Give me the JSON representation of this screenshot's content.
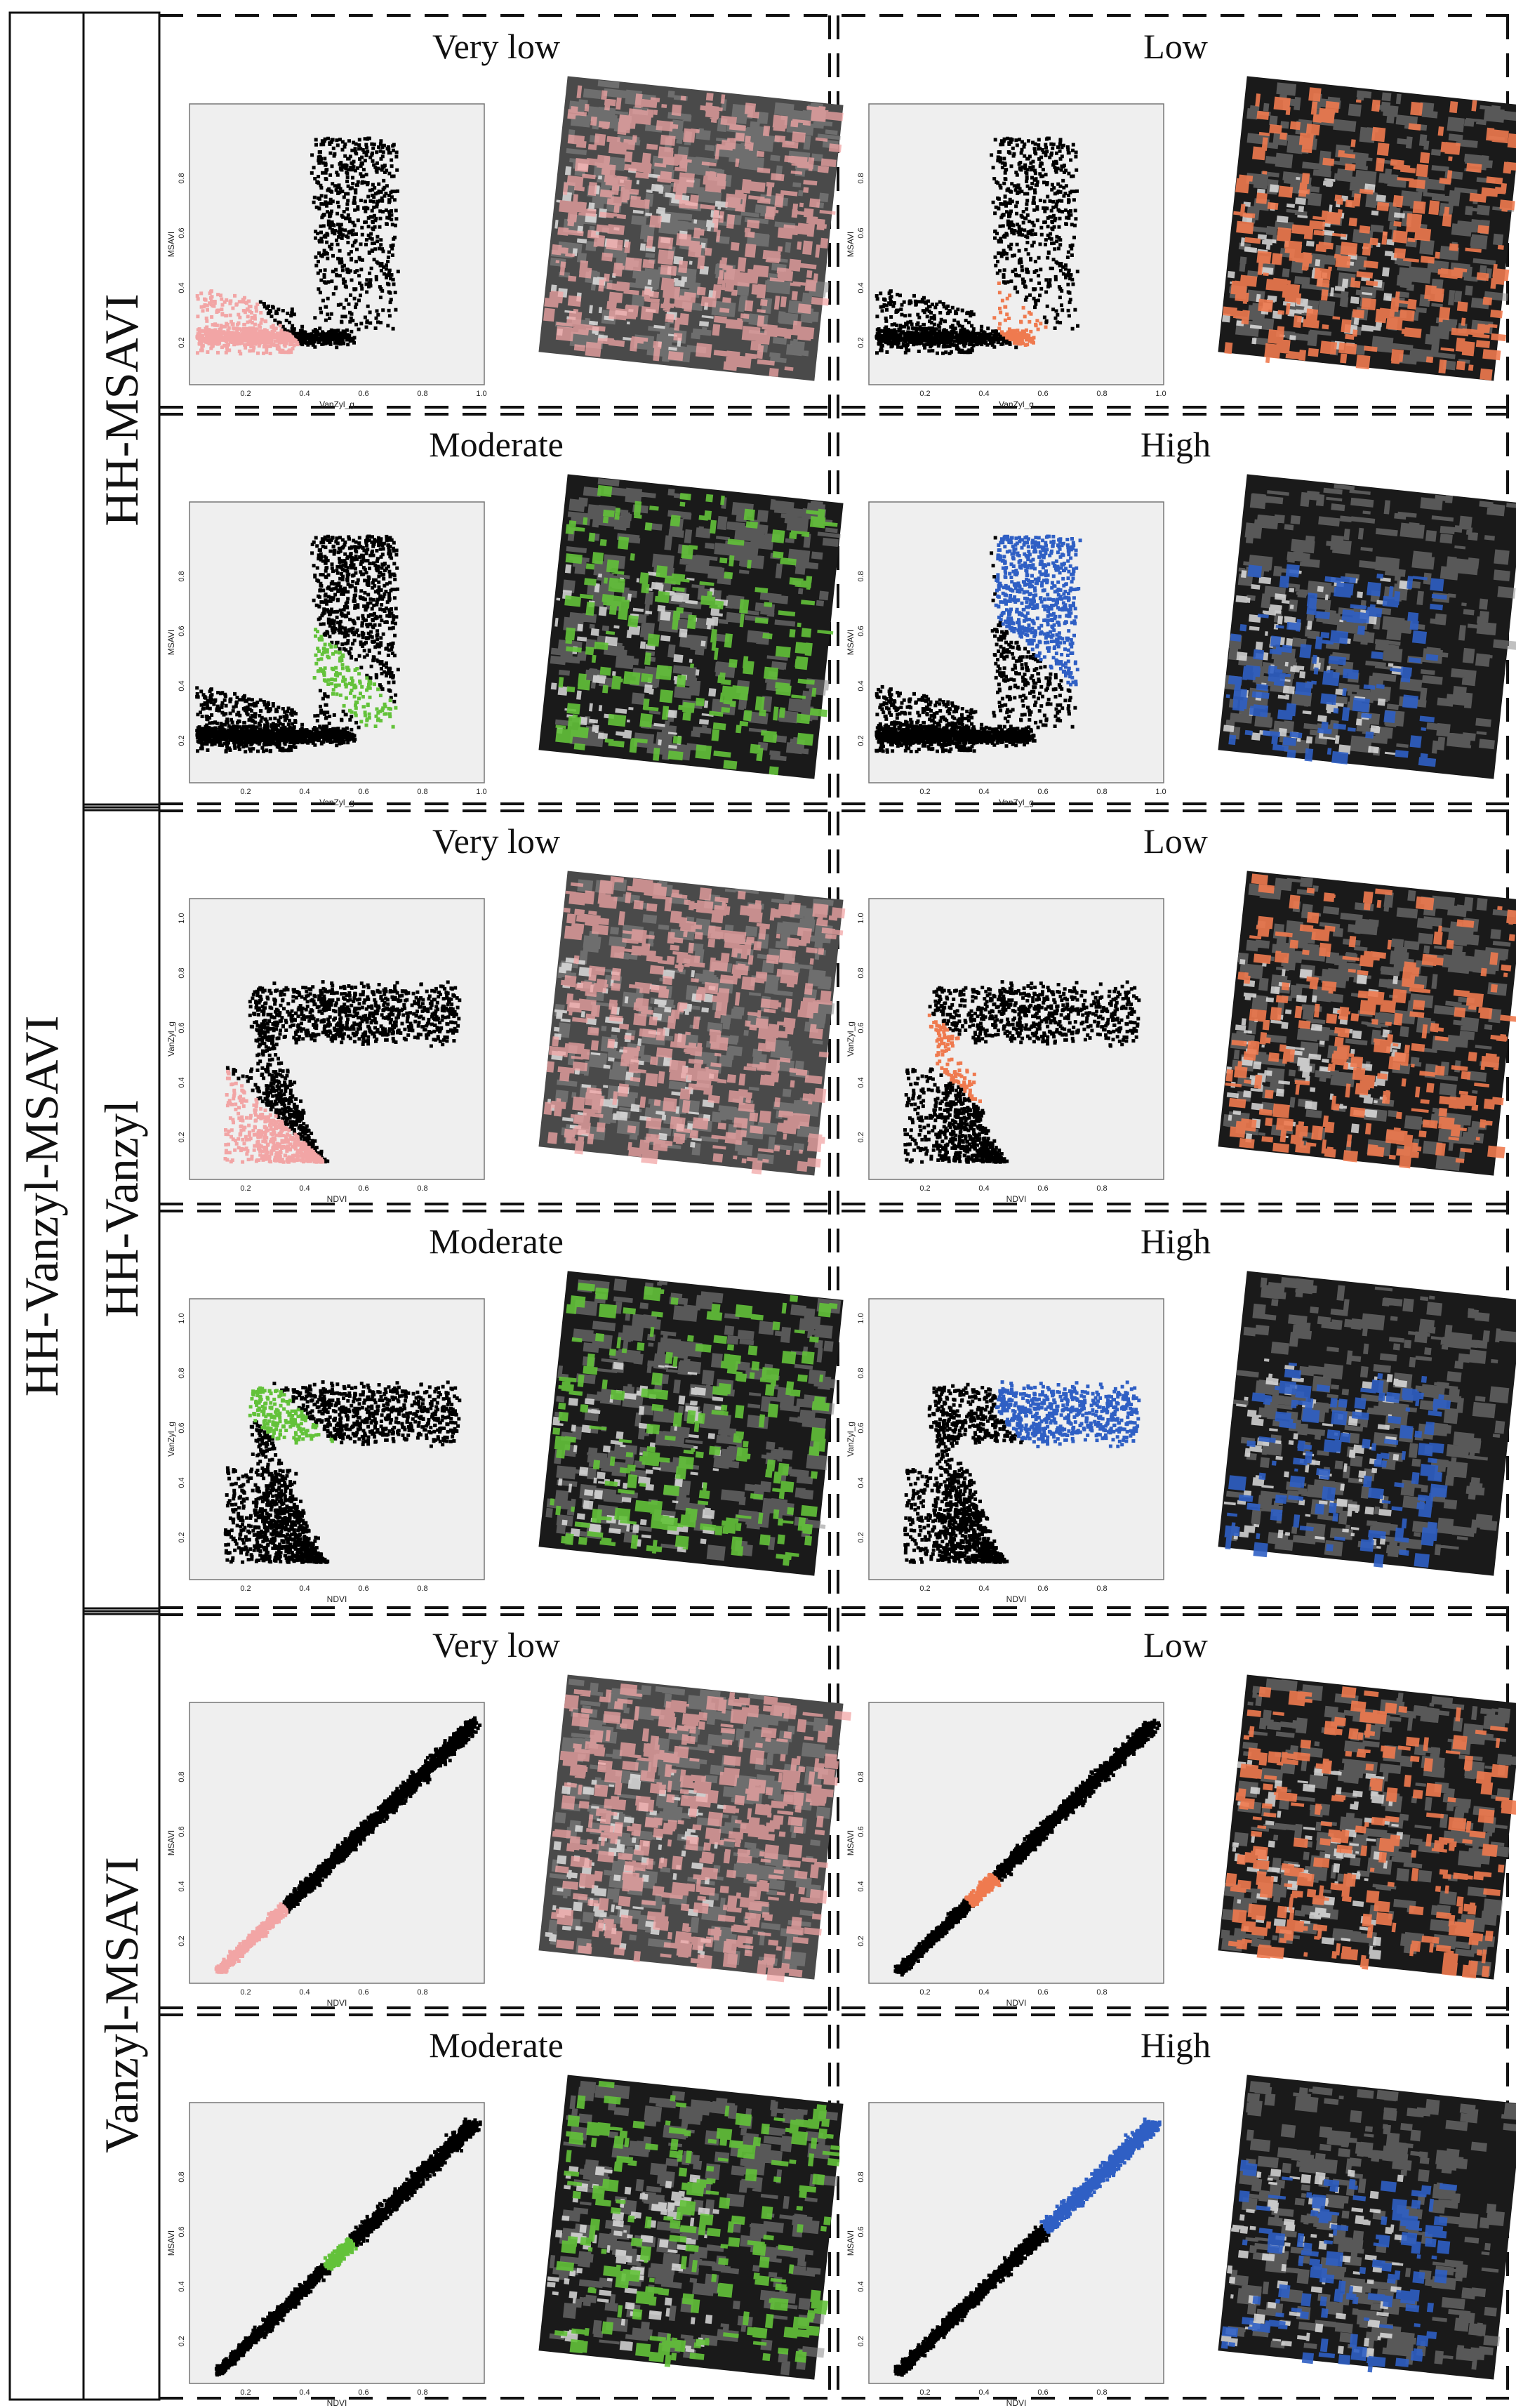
{
  "figure": {
    "outer_label": "HH-Vanzyl-MSAVI",
    "sections": [
      {
        "label": "HH-MSAVI",
        "xlabel": "VanZyl_g",
        "ylabel": "MSAVI",
        "xticks": [
          "0.2",
          "0.4",
          "0.6",
          "0.8",
          "1.0"
        ],
        "yticks": [
          "0.2",
          "0.4",
          "0.6",
          "0.8"
        ],
        "panels": [
          {
            "title": "Very low",
            "class": "very-low"
          },
          {
            "title": "Low",
            "class": "low"
          },
          {
            "title": "Moderate",
            "class": "moderate"
          },
          {
            "title": "High",
            "class": "high"
          }
        ]
      },
      {
        "label": "HH-Vanzyl",
        "xlabel": "NDVI",
        "ylabel": "VanZyl_g",
        "xticks": [
          "0.2",
          "0.4",
          "0.6",
          "0.8"
        ],
        "yticks": [
          "0.2",
          "0.4",
          "0.6",
          "0.8",
          "1.0"
        ],
        "panels": [
          {
            "title": "Very low",
            "class": "very-low"
          },
          {
            "title": "Low",
            "class": "low"
          },
          {
            "title": "Moderate",
            "class": "moderate"
          },
          {
            "title": "High",
            "class": "high"
          }
        ]
      },
      {
        "label": "Vanzyl-MSAVI",
        "xlabel": "NDVI",
        "ylabel": "MSAVI",
        "xticks": [
          "0.2",
          "0.4",
          "0.6",
          "0.8"
        ],
        "yticks": [
          "0.2",
          "0.4",
          "0.6",
          "0.8"
        ],
        "panels": [
          {
            "title": "Very low",
            "class": "very-low"
          },
          {
            "title": "Low",
            "class": "low"
          },
          {
            "title": "Moderate",
            "class": "moderate"
          },
          {
            "title": "High",
            "class": "high"
          }
        ]
      }
    ],
    "class_colors": {
      "very-low": "#f2a5a5",
      "low": "#ef7a4f",
      "moderate": "#63c23a",
      "high": "#2f5fc4"
    },
    "point_color": "#000000",
    "plot_bg": "#efefef"
  }
}
